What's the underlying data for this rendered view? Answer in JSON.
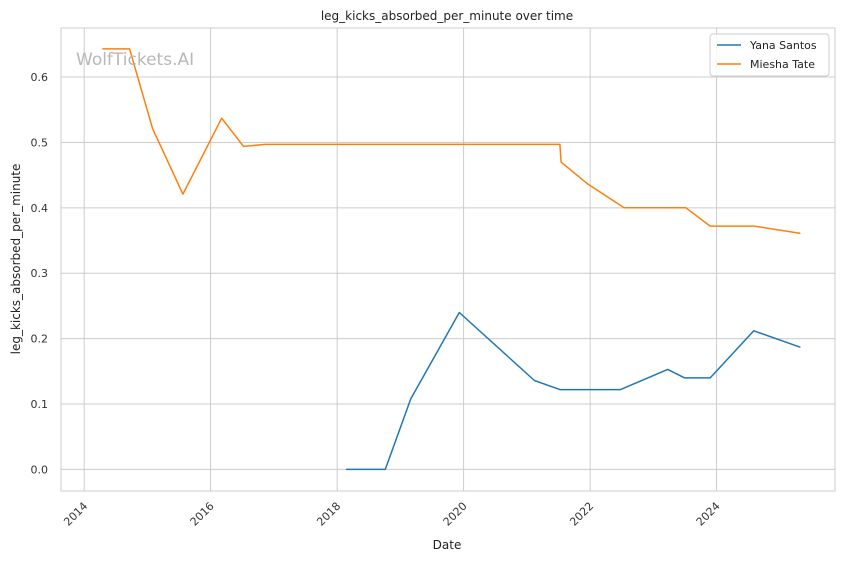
{
  "watermark": "WolfTickets.AI",
  "chart_data": {
    "type": "line",
    "title": "leg_kicks_absorbed_per_minute over time",
    "xlabel": "Date",
    "ylabel": "leg_kicks_absorbed_per_minute",
    "xlim": [
      "2013-08-20",
      "2025-11-15"
    ],
    "ylim": [
      -0.033,
      0.675
    ],
    "x_ticks": [
      "2014",
      "2016",
      "2018",
      "2020",
      "2022",
      "2024"
    ],
    "y_ticks": [
      "0.0",
      "0.1",
      "0.2",
      "0.3",
      "0.4",
      "0.5",
      "0.6"
    ],
    "grid": true,
    "legend_position": "top-right",
    "series": [
      {
        "name": "Yana Santos",
        "color": "#1f77b4",
        "x": [
          "2018-02-24",
          "2018-10-06",
          "2019-03-02",
          "2019-12-07",
          "2021-02-13",
          "2021-07-10",
          "2022-06-25",
          "2023-03-25",
          "2023-07-01",
          "2023-11-25",
          "2024-08-03",
          "2025-04-26"
        ],
        "y": [
          0.0,
          0.0,
          0.108,
          0.24,
          0.136,
          0.122,
          0.122,
          0.153,
          0.14,
          0.14,
          0.212,
          0.187
        ]
      },
      {
        "name": "Miesha Tate",
        "color": "#ff7f0e",
        "x": [
          "2014-04-19",
          "2014-09-20",
          "2015-01-31",
          "2015-07-25",
          "2016-03-05",
          "2016-07-09",
          "2016-11-12",
          "2021-07-10",
          "2021-07-17",
          "2021-12-15",
          "2022-07-16",
          "2023-07-08",
          "2023-11-25",
          "2024-08-03",
          "2025-04-26"
        ],
        "y": [
          0.643,
          0.643,
          0.521,
          0.421,
          0.537,
          0.494,
          0.497,
          0.497,
          0.47,
          0.437,
          0.4,
          0.4,
          0.372,
          0.372,
          0.361
        ]
      }
    ]
  }
}
